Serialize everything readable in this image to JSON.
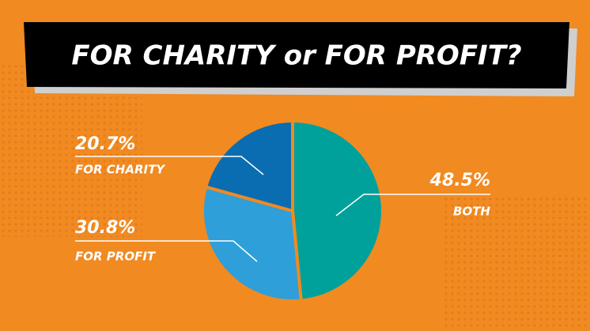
{
  "chart_data": {
    "type": "pie",
    "title": "FOR CHARITY or FOR PROFIT?",
    "categories": [
      "BOTH",
      "FOR PROFIT",
      "FOR CHARITY"
    ],
    "values": [
      48.5,
      30.8,
      20.7
    ],
    "value_labels": [
      "48.5%",
      "30.8%",
      "20.7%"
    ],
    "colors": [
      "#00a19a",
      "#2e9fd9",
      "#0a6db1"
    ]
  }
}
